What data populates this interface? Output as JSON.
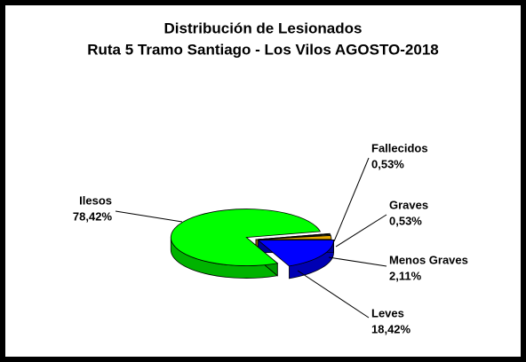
{
  "chart_data": {
    "type": "pie",
    "title": "Distribución de Lesionados",
    "subtitle": "Ruta 5 Tramo Santiago - Los Vilos AGOSTO-2018",
    "categories": [
      "Fallecidos",
      "Graves",
      "Menos Graves",
      "Leves",
      "Ilesos"
    ],
    "values": [
      0.53,
      0.53,
      2.11,
      18.42,
      78.42
    ],
    "value_labels": [
      "0,53%",
      "0,53%",
      "2,11%",
      "18,42%",
      "78,42%"
    ],
    "colors": [
      "#1a1a1a",
      "#ffff66",
      "#e6a800",
      "#0000ff",
      "#00ff00"
    ]
  }
}
